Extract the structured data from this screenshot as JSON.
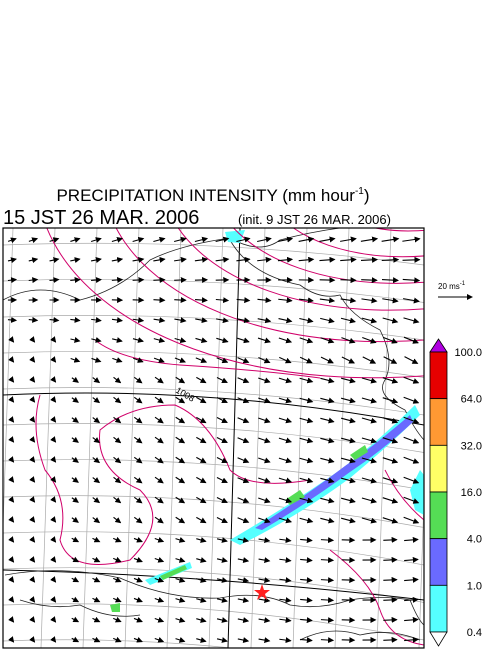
{
  "header": {
    "title": {
      "main": "PRECIPITATION INTENSITY (mm hour",
      "exponent": "-1",
      "close": ")"
    },
    "valid_time": "15 JST 26 MAR. 2006",
    "init_time": "(init. 9 JST 26 MAR. 2006)"
  },
  "wind_reference": {
    "label": "20 ms",
    "exponent": "-1"
  },
  "map": {
    "contour_label": "1008"
  },
  "colorbar": {
    "top_color": "#b000e0",
    "bottom_color": "#ffffff",
    "bands": [
      {
        "color": "#e60000"
      },
      {
        "color": "#ff9933"
      },
      {
        "color": "#ffff66"
      },
      {
        "color": "#55dd55"
      },
      {
        "color": "#6a6aff"
      },
      {
        "color": "#55ffff"
      }
    ],
    "labels": [
      "100.0",
      "64.0",
      "32.0",
      "16.0",
      "4.0",
      "1.0",
      "0.4"
    ]
  }
}
